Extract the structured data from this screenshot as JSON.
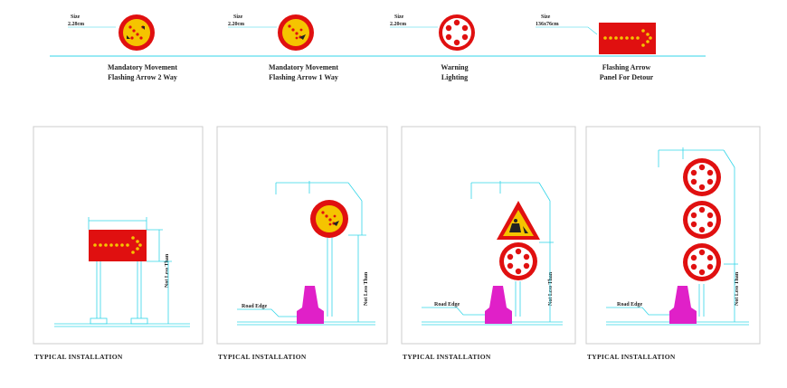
{
  "top_row": {
    "items": [
      {
        "size_title": "Size",
        "size_value": "2.28cm",
        "caption_1": "Mandatory Movement",
        "caption_2": "Flashing Arrow 2 Way"
      },
      {
        "size_title": "Size",
        "size_value": "2.20cm",
        "caption_1": "Mandatory Movement",
        "caption_2": "Flashing Arrow 1 Way"
      },
      {
        "size_title": "Size",
        "size_value": "2.20cm",
        "caption_1": "Warning",
        "caption_2": "Lighting"
      },
      {
        "size_title": "Size",
        "size_value": "136x76cm",
        "caption_1": "Flashing Arrow",
        "caption_2": "Panel For Detour"
      }
    ]
  },
  "panels": [
    {
      "label": "TYPICAL INSTALLATION",
      "vertical_note": "Not Less Than",
      "road_edge": ""
    },
    {
      "label": "TYPICAL INSTALLATION",
      "vertical_note": "Not Less Than",
      "road_edge": "Road Edge"
    },
    {
      "label": "TYPICAL INSTALLATION",
      "vertical_note": "Not Less Than",
      "road_edge": "Road Edge"
    },
    {
      "label": "TYPICAL INSTALLATION",
      "vertical_note": "Not Less Than",
      "road_edge": "Road Edge"
    }
  ],
  "colors": {
    "sign_red": "#e01010",
    "sign_yellow": "#f5c400",
    "dimension": "#33d6e8",
    "cone": "#e020c8",
    "frame": "#cccccc"
  }
}
